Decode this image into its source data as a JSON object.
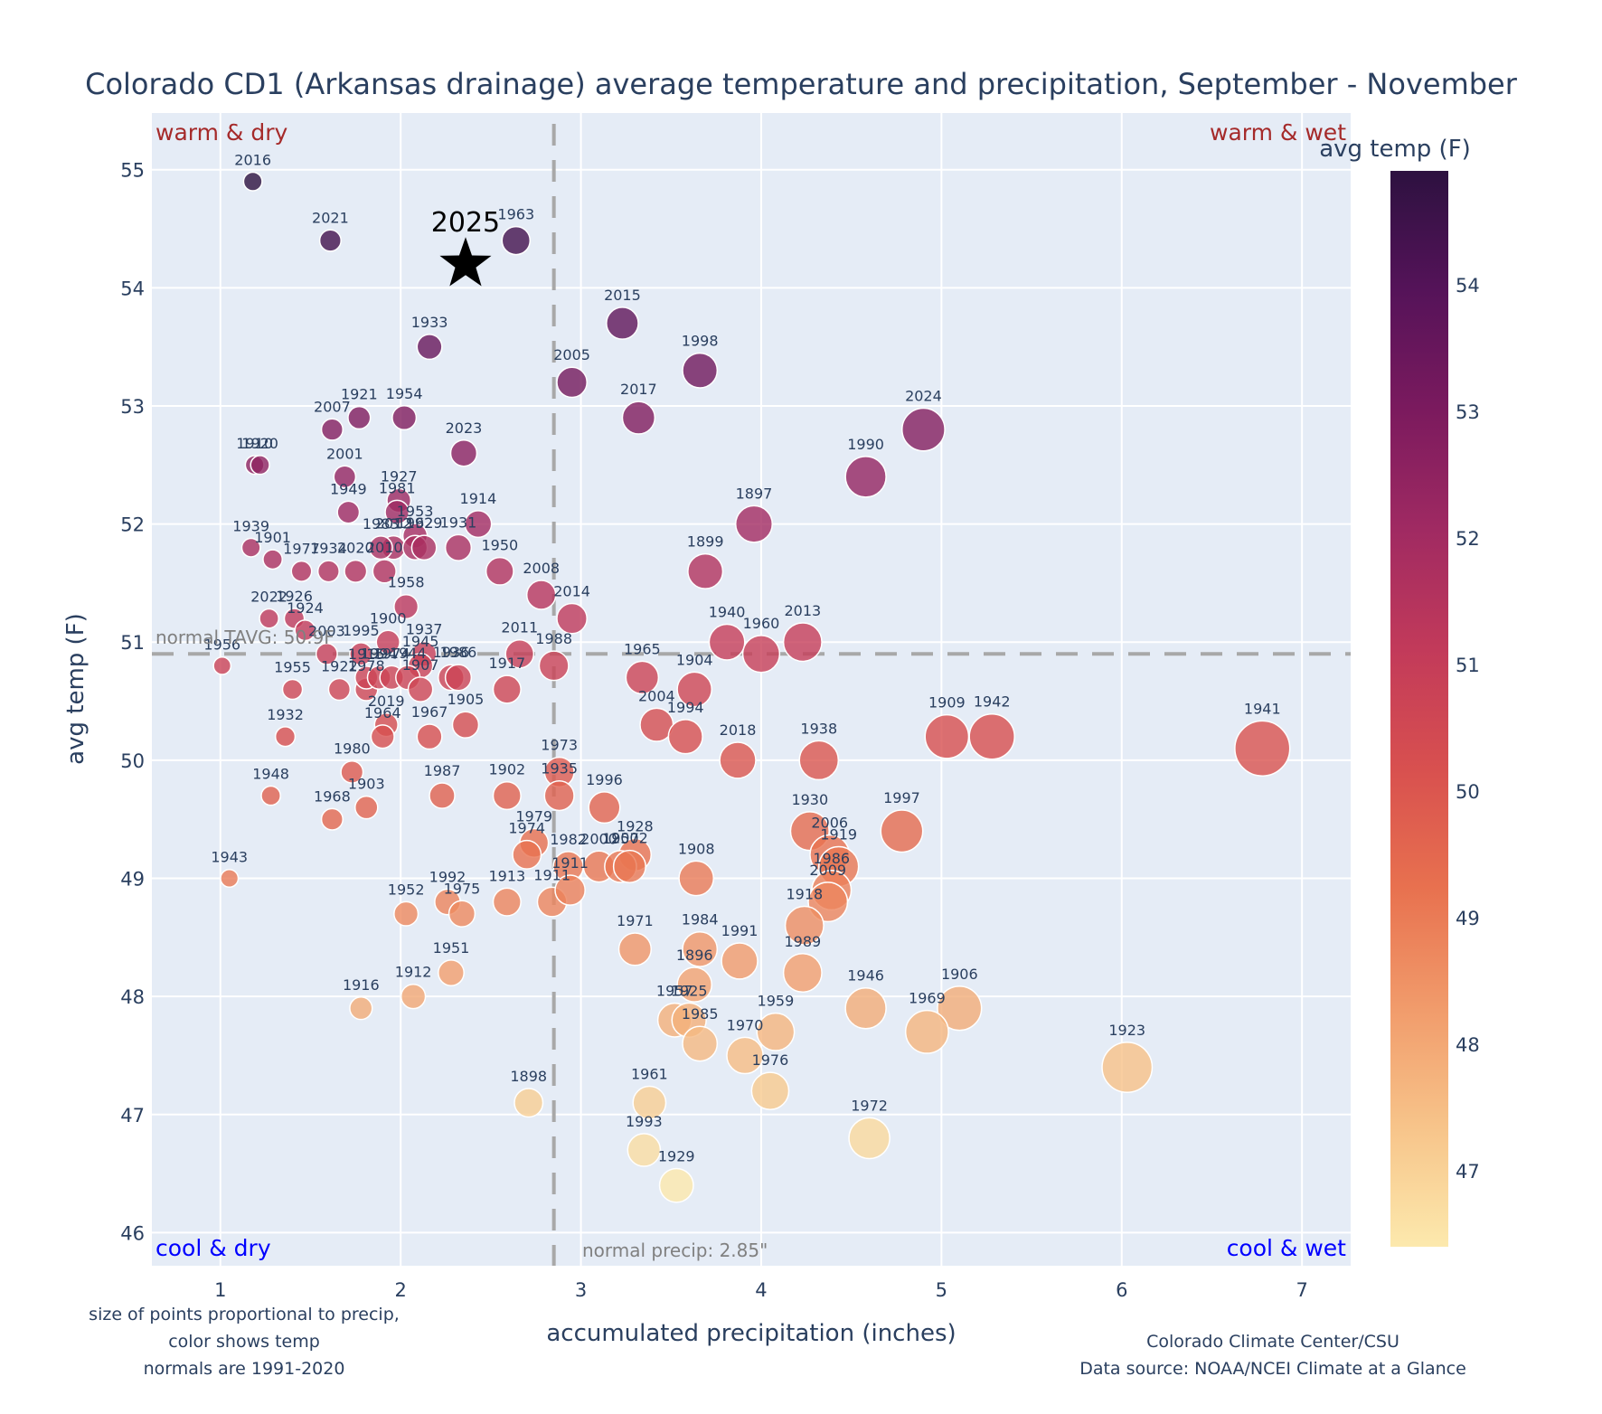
{
  "chart_data": {
    "type": "scatter",
    "title": "Colorado CD1 (Arkansas drainage) average temperature and precipitation, September - November",
    "xlabel": "accumulated precipitation (inches)",
    "ylabel": "avg temp (F)",
    "xlim": [
      0.62,
      7.27
    ],
    "ylim": [
      45.72,
      55.48
    ],
    "xticks": [
      1,
      2,
      3,
      4,
      5,
      6,
      7
    ],
    "yticks": [
      46,
      47,
      48,
      49,
      50,
      51,
      52,
      53,
      54,
      55
    ],
    "grid": true,
    "colorbar": {
      "title": "avg temp (F)",
      "range": [
        46.4,
        54.9
      ],
      "ticks": [
        47,
        48,
        49,
        50,
        51,
        52,
        53,
        54
      ],
      "colors": [
        "#fce9ad",
        "#f7c48a",
        "#f19b6b",
        "#e8714f",
        "#d8504f",
        "#c23a5a",
        "#a02a62",
        "#7b1a5e",
        "#551359",
        "#2d1140"
      ]
    },
    "quadrant_labels": {
      "top_left": "warm & dry",
      "top_right": "warm & wet",
      "bottom_left": "cool & dry",
      "bottom_right": "cool & wet"
    },
    "quadrant_colors": {
      "warm": "#a52a2a",
      "cool": "#0000ff"
    },
    "normals": {
      "temp": 50.9,
      "temp_label": "normal TAVG: 50.9F",
      "precip": 2.85,
      "precip_label": "normal precip: 2.85\""
    },
    "highlight": {
      "label": "2025",
      "x": 2.36,
      "y": 54.2,
      "marker": "star"
    },
    "notes_left": [
      "size of points proportional to precip,",
      "color shows temp",
      "normals are 1991-2020"
    ],
    "notes_right": [
      "Colorado Climate Center/CSU",
      "Data source: NOAA/NCEI Climate at a Glance"
    ],
    "points": [
      {
        "year": "2016",
        "x": 1.18,
        "y": 54.9
      },
      {
        "year": "2021",
        "x": 1.61,
        "y": 54.4
      },
      {
        "year": "1963",
        "x": 2.64,
        "y": 54.4
      },
      {
        "year": "1933",
        "x": 2.16,
        "y": 53.5
      },
      {
        "year": "2015",
        "x": 3.23,
        "y": 53.7
      },
      {
        "year": "1998",
        "x": 3.66,
        "y": 53.3
      },
      {
        "year": "2005",
        "x": 2.95,
        "y": 53.2
      },
      {
        "year": "2017",
        "x": 3.32,
        "y": 52.9
      },
      {
        "year": "2024",
        "x": 4.9,
        "y": 52.8
      },
      {
        "year": "1990",
        "x": 4.58,
        "y": 52.4
      },
      {
        "year": "1921",
        "x": 1.77,
        "y": 52.9
      },
      {
        "year": "1954",
        "x": 2.02,
        "y": 52.9
      },
      {
        "year": "2007",
        "x": 1.62,
        "y": 52.8
      },
      {
        "year": "2023",
        "x": 2.35,
        "y": 52.6
      },
      {
        "year": "1910",
        "x": 1.19,
        "y": 52.5
      },
      {
        "year": "1920",
        "x": 1.22,
        "y": 52.5
      },
      {
        "year": "2001",
        "x": 1.69,
        "y": 52.4
      },
      {
        "year": "1927",
        "x": 1.99,
        "y": 52.2
      },
      {
        "year": "1981",
        "x": 1.98,
        "y": 52.1
      },
      {
        "year": "1949",
        "x": 1.71,
        "y": 52.1
      },
      {
        "year": "1953",
        "x": 2.08,
        "y": 51.9
      },
      {
        "year": "1914",
        "x": 2.43,
        "y": 52.0
      },
      {
        "year": "1897",
        "x": 3.96,
        "y": 52.0
      },
      {
        "year": "2012",
        "x": 1.96,
        "y": 51.8
      },
      {
        "year": "1962",
        "x": 2.08,
        "y": 51.8
      },
      {
        "year": "1929",
        "x": 2.13,
        "y": 51.8
      },
      {
        "year": "1931",
        "x": 2.32,
        "y": 51.8
      },
      {
        "year": "1939",
        "x": 1.17,
        "y": 51.8
      },
      {
        "year": "1901",
        "x": 1.29,
        "y": 51.7
      },
      {
        "year": "1977",
        "x": 1.45,
        "y": 51.6
      },
      {
        "year": "1934",
        "x": 1.6,
        "y": 51.6
      },
      {
        "year": "2020",
        "x": 1.75,
        "y": 51.6
      },
      {
        "year": "2010",
        "x": 1.91,
        "y": 51.6
      },
      {
        "year": "1983",
        "x": 1.89,
        "y": 51.8
      },
      {
        "year": "1950",
        "x": 2.55,
        "y": 51.6
      },
      {
        "year": "1899",
        "x": 3.69,
        "y": 51.6
      },
      {
        "year": "2008",
        "x": 2.78,
        "y": 51.4
      },
      {
        "year": "1958",
        "x": 2.03,
        "y": 51.3
      },
      {
        "year": "2014",
        "x": 2.95,
        "y": 51.2
      },
      {
        "year": "2022",
        "x": 1.27,
        "y": 51.2
      },
      {
        "year": "1926",
        "x": 1.41,
        "y": 51.2
      },
      {
        "year": "1924",
        "x": 1.47,
        "y": 51.1
      },
      {
        "year": "2003",
        "x": 1.59,
        "y": 50.9
      },
      {
        "year": "1995",
        "x": 1.78,
        "y": 50.9
      },
      {
        "year": "1900",
        "x": 1.93,
        "y": 51.0
      },
      {
        "year": "1937",
        "x": 2.13,
        "y": 50.9
      },
      {
        "year": "1945",
        "x": 2.11,
        "y": 50.8
      },
      {
        "year": "2011",
        "x": 2.66,
        "y": 50.9
      },
      {
        "year": "1988",
        "x": 2.85,
        "y": 50.8
      },
      {
        "year": "1940",
        "x": 3.81,
        "y": 51.0
      },
      {
        "year": "1960",
        "x": 4.0,
        "y": 50.9
      },
      {
        "year": "2013",
        "x": 4.23,
        "y": 51.0
      },
      {
        "year": "1965",
        "x": 3.34,
        "y": 50.7
      },
      {
        "year": "1904",
        "x": 3.63,
        "y": 50.6
      },
      {
        "year": "1956",
        "x": 1.01,
        "y": 50.8
      },
      {
        "year": "1955",
        "x": 1.4,
        "y": 50.6
      },
      {
        "year": "1922",
        "x": 1.66,
        "y": 50.6
      },
      {
        "year": "1978",
        "x": 1.81,
        "y": 50.6
      },
      {
        "year": "1915",
        "x": 1.81,
        "y": 50.7
      },
      {
        "year": "1994",
        "x": 1.88,
        "y": 50.7
      },
      {
        "year": "1974",
        "x": 1.95,
        "y": 50.7
      },
      {
        "year": "1944",
        "x": 2.04,
        "y": 50.7
      },
      {
        "year": "1907",
        "x": 2.11,
        "y": 50.6
      },
      {
        "year": "1936",
        "x": 2.28,
        "y": 50.7
      },
      {
        "year": "1986",
        "x": 2.32,
        "y": 50.7
      },
      {
        "year": "1917",
        "x": 2.59,
        "y": 50.6
      },
      {
        "year": "2004",
        "x": 3.42,
        "y": 50.3
      },
      {
        "year": "1994",
        "x": 3.58,
        "y": 50.2
      },
      {
        "year": "2018",
        "x": 3.87,
        "y": 50.0
      },
      {
        "year": "1938",
        "x": 4.32,
        "y": 50.0
      },
      {
        "year": "1909",
        "x": 5.03,
        "y": 50.2
      },
      {
        "year": "1942",
        "x": 5.28,
        "y": 50.2
      },
      {
        "year": "1941",
        "x": 6.78,
        "y": 50.1
      },
      {
        "year": "1932",
        "x": 1.36,
        "y": 50.2
      },
      {
        "year": "2019",
        "x": 1.92,
        "y": 50.3
      },
      {
        "year": "1964",
        "x": 1.9,
        "y": 50.2
      },
      {
        "year": "1967",
        "x": 2.16,
        "y": 50.2
      },
      {
        "year": "1905",
        "x": 2.36,
        "y": 50.3
      },
      {
        "year": "1980",
        "x": 1.73,
        "y": 49.9
      },
      {
        "year": "1948",
        "x": 1.28,
        "y": 49.7
      },
      {
        "year": "1903",
        "x": 1.81,
        "y": 49.6
      },
      {
        "year": "1968",
        "x": 1.62,
        "y": 49.5
      },
      {
        "year": "1987",
        "x": 2.23,
        "y": 49.7
      },
      {
        "year": "1902",
        "x": 2.59,
        "y": 49.7
      },
      {
        "year": "1973",
        "x": 2.88,
        "y": 49.9
      },
      {
        "year": "1935",
        "x": 2.88,
        "y": 49.7
      },
      {
        "year": "1996",
        "x": 3.13,
        "y": 49.6
      },
      {
        "year": "1930",
        "x": 4.27,
        "y": 49.4
      },
      {
        "year": "1997",
        "x": 4.78,
        "y": 49.4
      },
      {
        "year": "2006",
        "x": 4.38,
        "y": 49.2
      },
      {
        "year": "1979",
        "x": 2.74,
        "y": 49.3
      },
      {
        "year": "1974",
        "x": 2.7,
        "y": 49.2
      },
      {
        "year": "1928",
        "x": 3.3,
        "y": 49.2
      },
      {
        "year": "2000",
        "x": 3.1,
        "y": 49.1
      },
      {
        "year": "1957",
        "x": 3.22,
        "y": 49.1
      },
      {
        "year": "2002",
        "x": 3.27,
        "y": 49.1
      },
      {
        "year": "1982",
        "x": 2.93,
        "y": 49.1
      },
      {
        "year": "1908",
        "x": 3.64,
        "y": 49.0
      },
      {
        "year": "1919",
        "x": 4.43,
        "y": 49.1
      },
      {
        "year": "1986",
        "x": 4.39,
        "y": 48.9
      },
      {
        "year": "2009",
        "x": 4.37,
        "y": 48.8
      },
      {
        "year": "1943",
        "x": 1.05,
        "y": 49.0
      },
      {
        "year": "1913",
        "x": 2.59,
        "y": 48.8
      },
      {
        "year": "1911",
        "x": 2.84,
        "y": 48.8
      },
      {
        "year": "1911",
        "x": 2.94,
        "y": 48.9
      },
      {
        "year": "1992",
        "x": 2.26,
        "y": 48.8
      },
      {
        "year": "1975",
        "x": 2.34,
        "y": 48.7
      },
      {
        "year": "1952",
        "x": 2.03,
        "y": 48.7
      },
      {
        "year": "1971",
        "x": 3.3,
        "y": 48.4
      },
      {
        "year": "1984",
        "x": 3.66,
        "y": 48.4
      },
      {
        "year": "1991",
        "x": 3.88,
        "y": 48.3
      },
      {
        "year": "1918",
        "x": 4.24,
        "y": 48.6
      },
      {
        "year": "1951",
        "x": 2.28,
        "y": 48.2
      },
      {
        "year": "1896",
        "x": 3.63,
        "y": 48.1
      },
      {
        "year": "1989",
        "x": 4.23,
        "y": 48.2
      },
      {
        "year": "1912",
        "x": 2.07,
        "y": 48.0
      },
      {
        "year": "1916",
        "x": 1.78,
        "y": 47.9
      },
      {
        "year": "1957",
        "x": 3.52,
        "y": 47.8
      },
      {
        "year": "1925",
        "x": 3.6,
        "y": 47.8
      },
      {
        "year": "1985",
        "x": 3.66,
        "y": 47.6
      },
      {
        "year": "1959",
        "x": 4.08,
        "y": 47.7
      },
      {
        "year": "1970",
        "x": 3.91,
        "y": 47.5
      },
      {
        "year": "1946",
        "x": 4.58,
        "y": 47.9
      },
      {
        "year": "1906",
        "x": 5.1,
        "y": 47.9
      },
      {
        "year": "1969",
        "x": 4.92,
        "y": 47.7
      },
      {
        "year": "1923",
        "x": 6.03,
        "y": 47.4
      },
      {
        "year": "1898",
        "x": 2.71,
        "y": 47.1
      },
      {
        "year": "1961",
        "x": 3.38,
        "y": 47.1
      },
      {
        "year": "1976",
        "x": 4.05,
        "y": 47.2
      },
      {
        "year": "1993",
        "x": 3.35,
        "y": 46.7
      },
      {
        "year": "1972",
        "x": 4.6,
        "y": 46.8
      },
      {
        "year": "1929",
        "x": 3.53,
        "y": 46.4
      }
    ]
  }
}
